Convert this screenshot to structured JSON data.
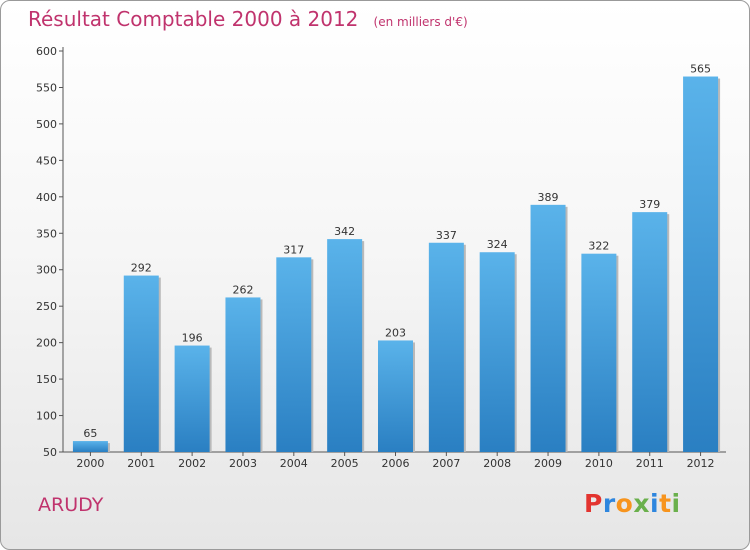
{
  "header": {
    "title": "Résultat Comptable 2000 à 2012",
    "subtitle": "(en milliers d'€)"
  },
  "footer": {
    "city": "ARUDY",
    "logo_text": "Proxiti"
  },
  "colors": {
    "accent": "#c0336d",
    "bar_top": "#5ab3ea",
    "bar_bottom": "#2a7fc2",
    "logo": [
      "#e3342f",
      "#2e86de",
      "#f7941d",
      "#6ab04c",
      "#2e86de",
      "#f7941d",
      "#6ab04c"
    ]
  },
  "chart_data": {
    "type": "bar",
    "title": "Résultat Comptable 2000 à 2012",
    "subtitle": "(en milliers d'€)",
    "xlabel": "",
    "ylabel": "",
    "categories": [
      "2000",
      "2001",
      "2002",
      "2003",
      "2004",
      "2005",
      "2006",
      "2007",
      "2008",
      "2009",
      "2010",
      "2011",
      "2012"
    ],
    "values": [
      65,
      292,
      196,
      262,
      317,
      342,
      203,
      337,
      324,
      389,
      322,
      379,
      565
    ],
    "ylim": [
      50,
      600
    ],
    "yticks": [
      50,
      100,
      150,
      200,
      250,
      300,
      350,
      400,
      450,
      500,
      550,
      600
    ],
    "grid": false,
    "legend": "none"
  }
}
